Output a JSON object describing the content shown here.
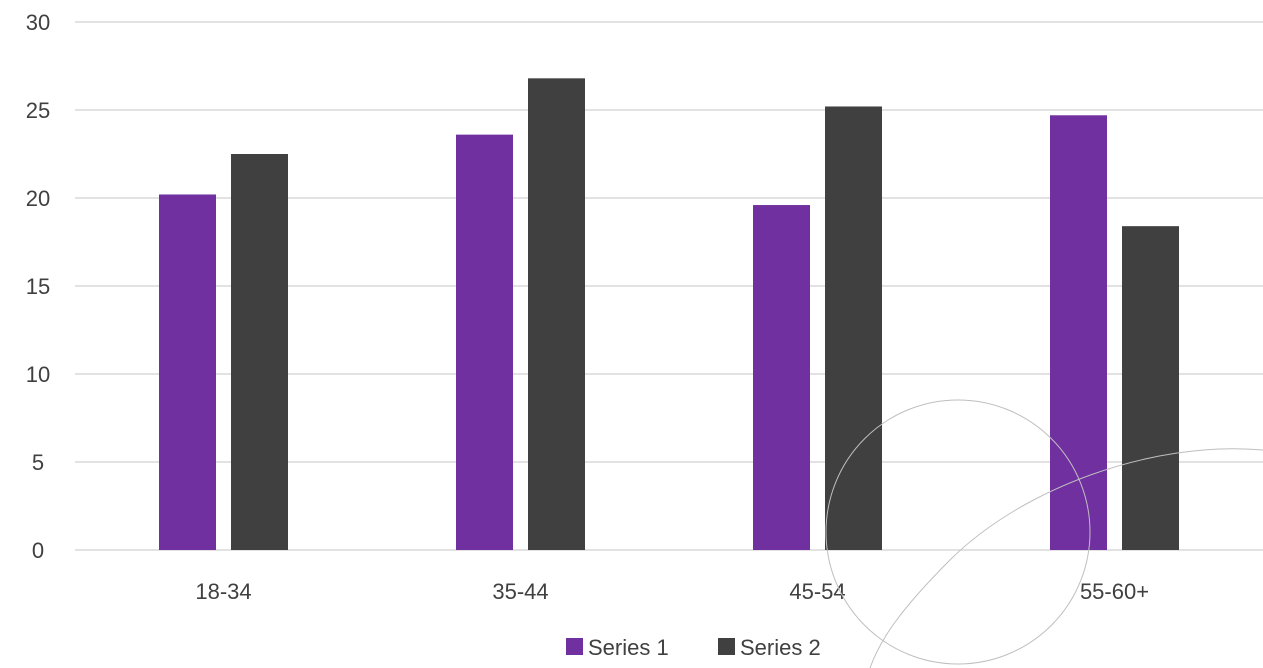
{
  "chart_data": {
    "type": "bar",
    "categories": [
      "18-34",
      "35-44",
      "45-54",
      "55-60+"
    ],
    "series": [
      {
        "name": "Series 1",
        "values": [
          20.2,
          23.6,
          19.6,
          24.7
        ],
        "color": "#7030A0"
      },
      {
        "name": "Series 2",
        "values": [
          22.5,
          26.8,
          25.2,
          18.4
        ],
        "color": "#404040"
      }
    ],
    "y_ticks": [
      "0",
      "5",
      "10",
      "15",
      "20",
      "25",
      "30"
    ],
    "ylim": [
      0,
      30
    ],
    "grid": true,
    "legend_position": "bottom"
  }
}
